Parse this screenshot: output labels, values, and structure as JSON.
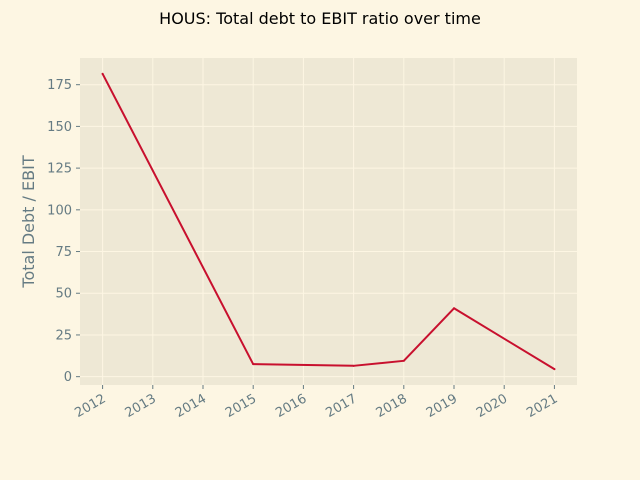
{
  "colors": {
    "figure_bg": "#fdf6e3",
    "plot_bg": "#eee8d5",
    "grid": "#fdf6e3",
    "tick_text": "#657b83",
    "line": "#c8102e",
    "title_text": "#000000"
  },
  "chart_data": {
    "type": "line",
    "title": "HOUS: Total debt to EBIT ratio over time",
    "xlabel": "",
    "ylabel": "Total Debt / EBIT",
    "x": [
      "2012",
      "2013",
      "2014",
      "2015",
      "2016",
      "2017",
      "2018",
      "2019",
      "2020",
      "2021"
    ],
    "xlim": [
      2011.55,
      2021.45
    ],
    "ylim": [
      -5,
      191
    ],
    "yticks": [
      0,
      25,
      50,
      75,
      100,
      125,
      150,
      175
    ],
    "grid": true,
    "legend": "none",
    "series": [
      {
        "x": [
          2012,
          2015,
          2017,
          2018,
          2019,
          2021
        ],
        "y": [
          181.5,
          7.5,
          6.5,
          9.5,
          41,
          4.5
        ]
      }
    ]
  }
}
